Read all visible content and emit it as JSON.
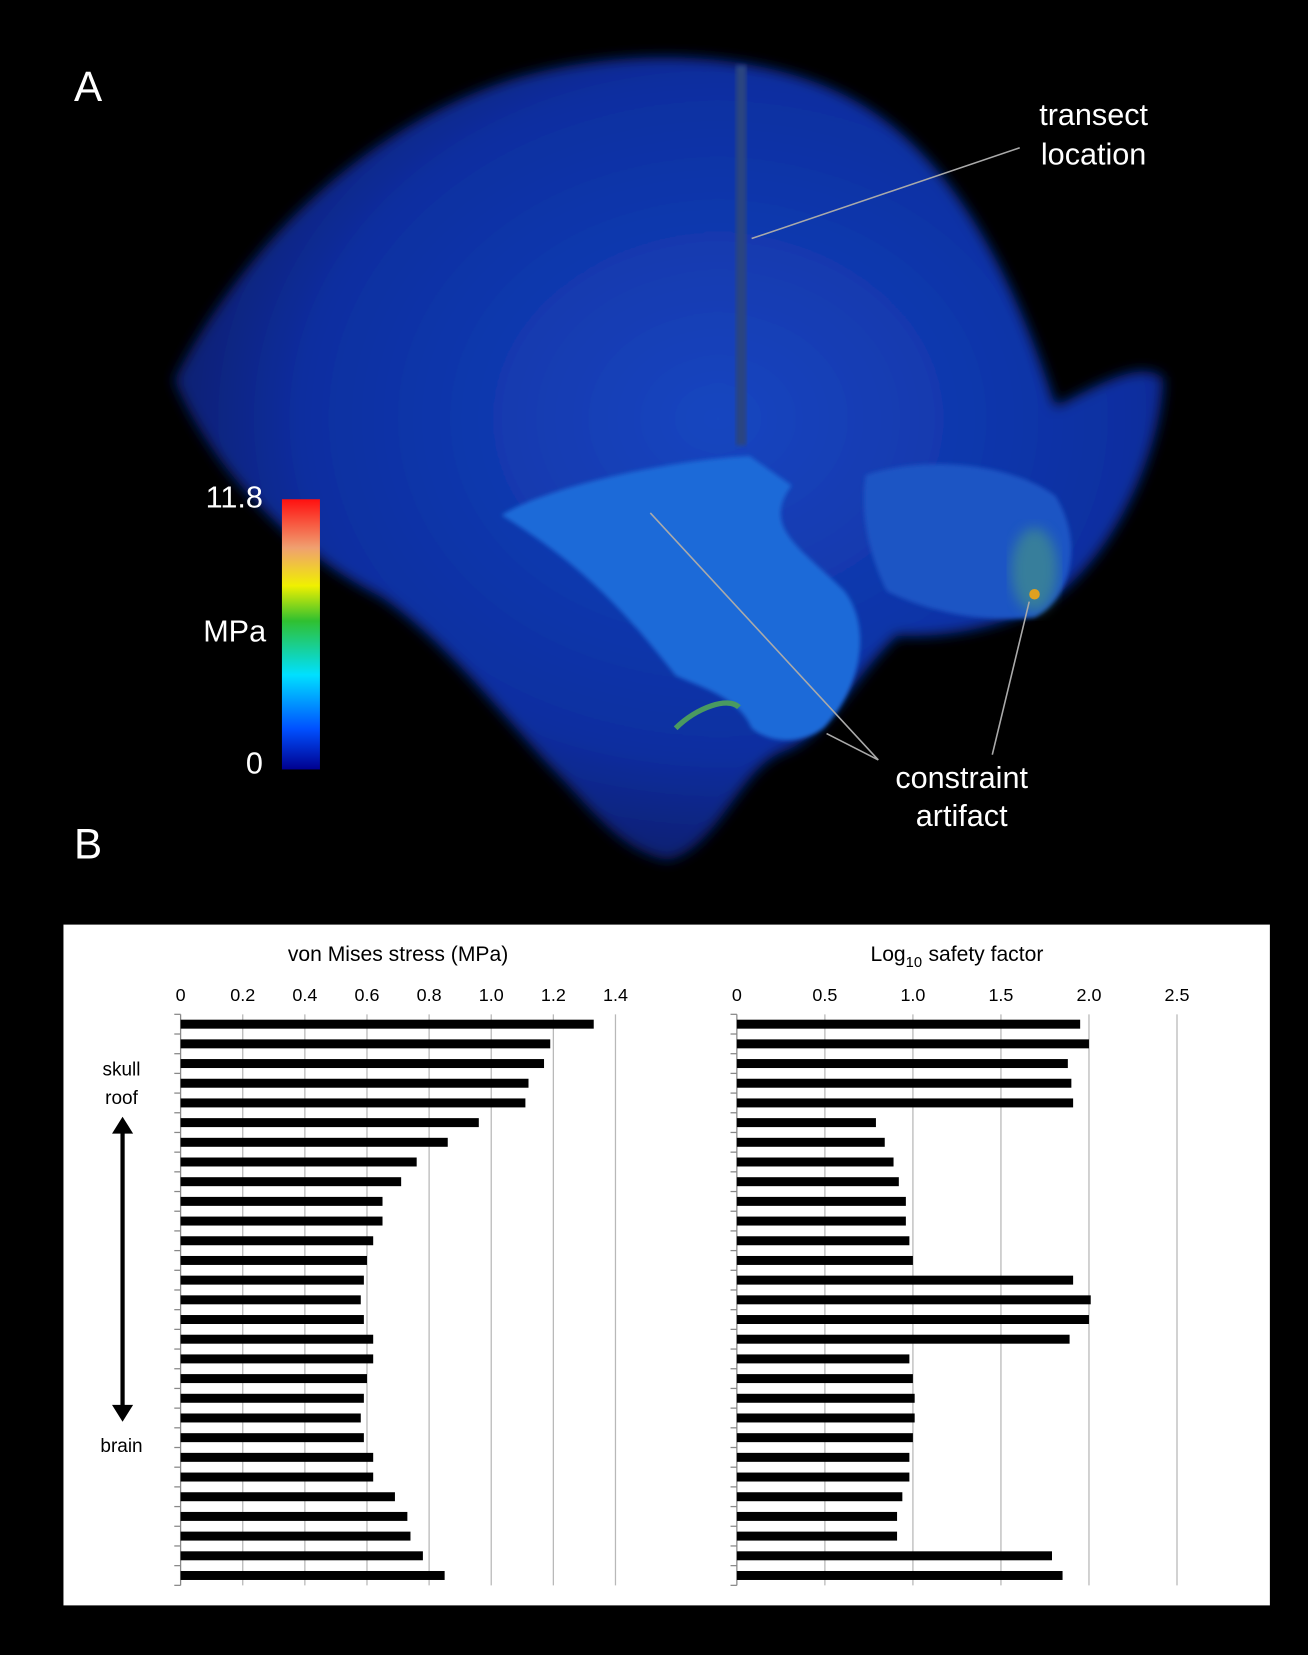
{
  "panel_labels": [
    "A",
    "B"
  ],
  "render": {
    "annotations": {
      "transect": [
        "transect",
        "location"
      ],
      "artifact": [
        "constraint",
        "artifact"
      ]
    },
    "colorbar": {
      "max": 11.8,
      "unit": "MPa",
      "min": 0
    }
  },
  "chart_data": [
    {
      "type": "bar",
      "orientation": "horizontal",
      "title": "von Mises stress (MPa)",
      "values": [
        1.33,
        1.19,
        1.17,
        1.12,
        1.11,
        0.96,
        0.86,
        0.76,
        0.71,
        0.65,
        0.65,
        0.62,
        0.6,
        0.59,
        0.58,
        0.59,
        0.62,
        0.62,
        0.6,
        0.59,
        0.58,
        0.59,
        0.62,
        0.62,
        0.69,
        0.73,
        0.74,
        0.78,
        0.85
      ],
      "color": "#000000",
      "xlim": [
        0,
        1.4
      ],
      "xticks": [
        0,
        0.2,
        0.4,
        0.6,
        0.8,
        {
          "value": 1,
          "label": "1.0"
        },
        1.2,
        1.4
      ],
      "grid": true,
      "annotations": {
        "top": [
          "skull",
          "roof"
        ],
        "bottom": "brain"
      }
    },
    {
      "type": "bar",
      "orientation": "horizontal",
      "title": [
        "Log",
        "10",
        "safety factor"
      ],
      "values": [
        1.95,
        2.0,
        1.88,
        1.9,
        1.91,
        0.79,
        0.84,
        0.89,
        0.92,
        0.96,
        0.96,
        0.98,
        1.0,
        1.91,
        2.01,
        2.0,
        1.89,
        0.98,
        1.0,
        1.01,
        1.01,
        1.0,
        0.98,
        0.98,
        0.94,
        0.91,
        0.91,
        1.79,
        1.85
      ],
      "color": "#000000",
      "xlim": [
        0,
        2.5
      ],
      "xticks": [
        0,
        0.5,
        {
          "value": 1,
          "label": "1.0"
        },
        1.5,
        {
          "value": 2,
          "label": "2.0"
        },
        2.5
      ],
      "grid": true
    }
  ]
}
